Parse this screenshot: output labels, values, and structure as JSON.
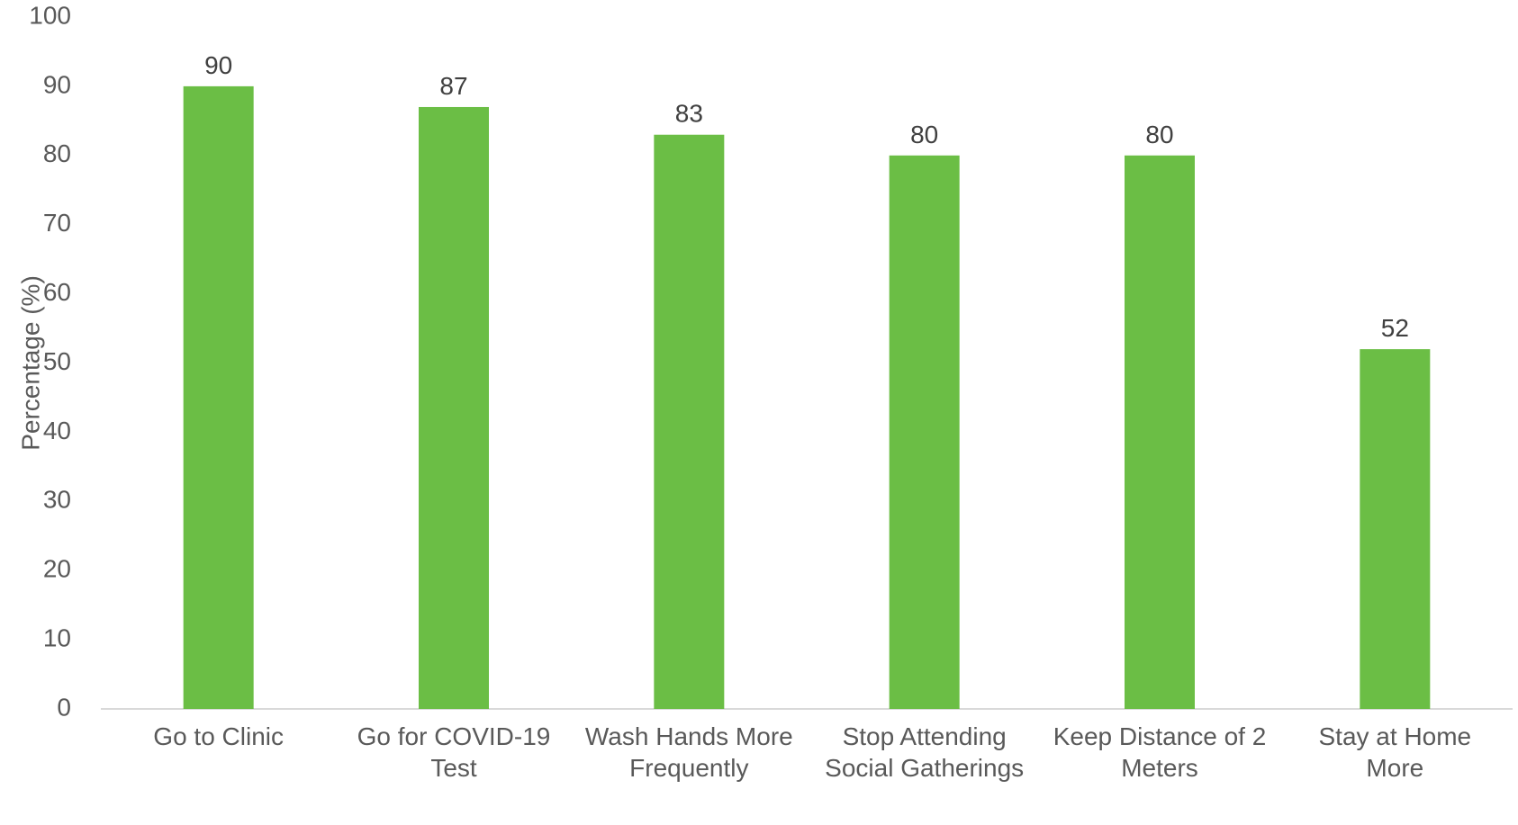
{
  "chart_data": {
    "type": "bar",
    "title": "",
    "xlabel": "",
    "ylabel": "Percentage (%)",
    "ylim": [
      0,
      100
    ],
    "yticks": [
      0,
      10,
      20,
      30,
      40,
      50,
      60,
      70,
      80,
      90,
      100
    ],
    "grid": false,
    "legend": "none",
    "bar_color": "#6BBE45",
    "categories": [
      [
        "Go to Clinic"
      ],
      [
        "Go for COVID-19",
        "Test"
      ],
      [
        "Wash Hands More",
        "Frequently"
      ],
      [
        "Stop Attending",
        "Social Gatherings"
      ],
      [
        "Keep Distance of 2",
        "Meters"
      ],
      [
        "Stay at Home",
        "More"
      ]
    ],
    "values": [
      90,
      87,
      83,
      80,
      80,
      52
    ],
    "data_labels": [
      "90",
      "87",
      "83",
      "80",
      "80",
      "52"
    ]
  }
}
